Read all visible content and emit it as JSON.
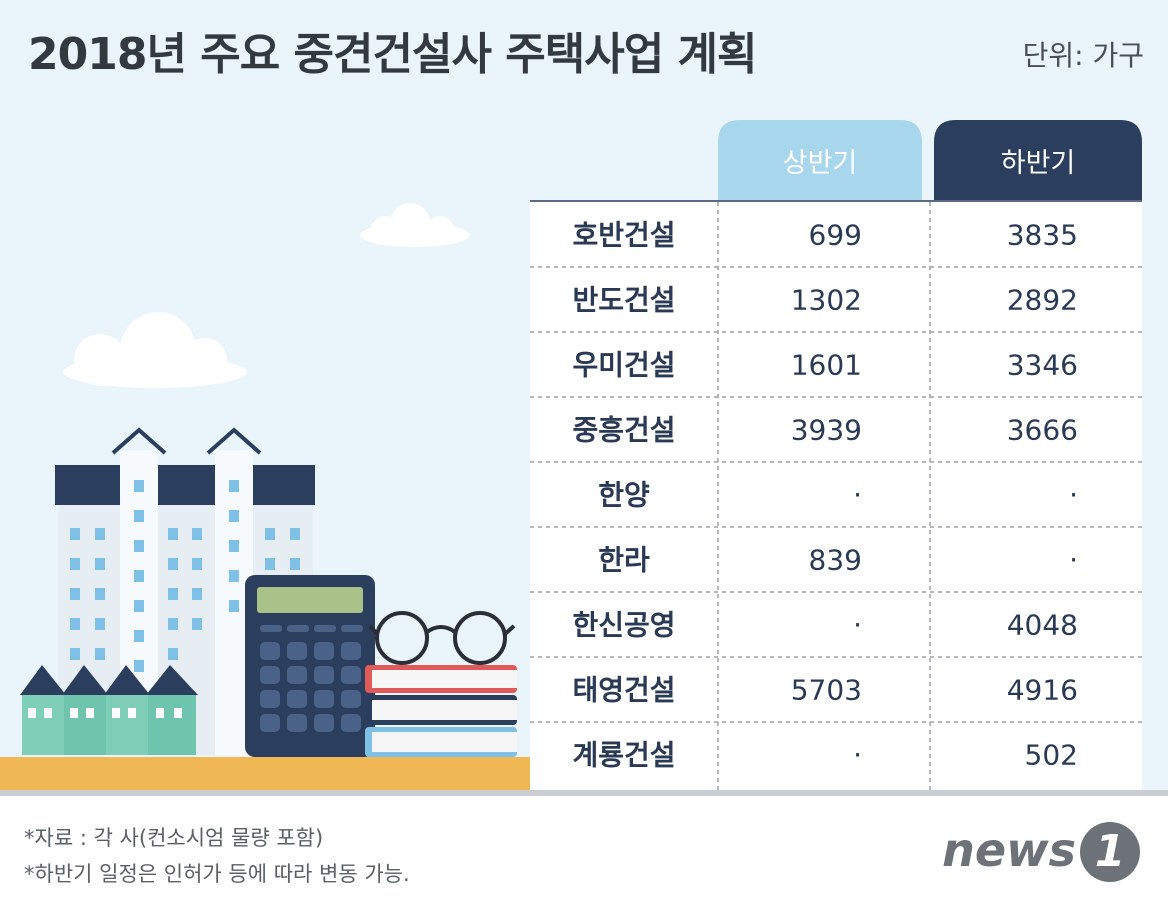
{
  "title": "2018년 주요 중견건설사 주택사업 계획",
  "unit": "단위: 가구",
  "chart_data": {
    "type": "table",
    "title": "2018년 주요 중견건설사 주택사업 계획",
    "columns": [
      "상반기",
      "하반기"
    ],
    "rows": [
      {
        "name": "호반건설",
        "h1": "699",
        "h2": "3835"
      },
      {
        "name": "반도건설",
        "h1": "1302",
        "h2": "2892"
      },
      {
        "name": "우미건설",
        "h1": "1601",
        "h2": "3346"
      },
      {
        "name": "중흥건설",
        "h1": "3939",
        "h2": "3666"
      },
      {
        "name": "한양",
        "h1": "·",
        "h2": "·"
      },
      {
        "name": "한라",
        "h1": "839",
        "h2": "·"
      },
      {
        "name": "한신공영",
        "h1": "·",
        "h2": "4048"
      },
      {
        "name": "태영건설",
        "h1": "5703",
        "h2": "4916"
      },
      {
        "name": "계룡건설",
        "h1": "·",
        "h2": "502"
      }
    ],
    "header_colors": {
      "h1": "#a8d6ec",
      "h2": "#2c3e5e"
    }
  },
  "notes": [
    "*자료 : 각 사(컨소시엄 물량 포함)",
    "*하반기 일정은 인허가 등에 따라 변동 가능."
  ],
  "logo": {
    "text": "news",
    "mark": "1"
  }
}
